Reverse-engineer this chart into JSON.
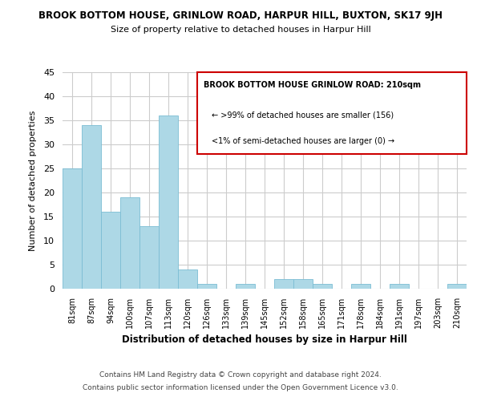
{
  "title": "BROOK BOTTOM HOUSE, GRINLOW ROAD, HARPUR HILL, BUXTON, SK17 9JH",
  "subtitle": "Size of property relative to detached houses in Harpur Hill",
  "xlabel": "Distribution of detached houses by size in Harpur Hill",
  "ylabel": "Number of detached properties",
  "bar_color": "#add8e6",
  "bar_edge_color": "#7bbdd4",
  "categories": [
    "81sqm",
    "87sqm",
    "94sqm",
    "100sqm",
    "107sqm",
    "113sqm",
    "120sqm",
    "126sqm",
    "133sqm",
    "139sqm",
    "145sqm",
    "152sqm",
    "158sqm",
    "165sqm",
    "171sqm",
    "178sqm",
    "184sqm",
    "191sqm",
    "197sqm",
    "203sqm",
    "210sqm"
  ],
  "values": [
    25,
    34,
    16,
    19,
    13,
    36,
    4,
    1,
    0,
    1,
    0,
    2,
    2,
    1,
    0,
    1,
    0,
    1,
    0,
    0,
    1
  ],
  "ylim": [
    0,
    45
  ],
  "yticks": [
    0,
    5,
    10,
    15,
    20,
    25,
    30,
    35,
    40,
    45
  ],
  "annotation_box_edge": "#cc0000",
  "annotation_title": "BROOK BOTTOM HOUSE GRINLOW ROAD: 210sqm",
  "annotation_line1": "← >99% of detached houses are smaller (156)",
  "annotation_line2": "<1% of semi-detached houses are larger (0) →",
  "footer_line1": "Contains HM Land Registry data © Crown copyright and database right 2024.",
  "footer_line2": "Contains public sector information licensed under the Open Government Licence v3.0.",
  "background_color": "#ffffff",
  "grid_color": "#cccccc"
}
